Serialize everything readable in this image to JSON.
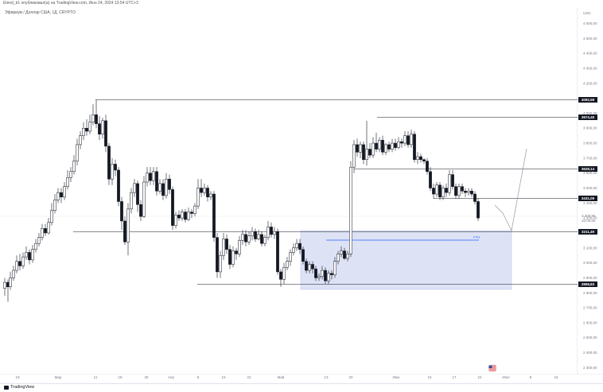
{
  "header": {
    "text": "Elend_b1 опубликовал(а) на TradingView.com, Июн 24, 2024 13:54 UTC+3",
    "symbol": "Эфириум / Доллар США, 1Д, CRYPTO"
  },
  "axis": {
    "currency": "USD",
    "price_labels": [
      "4 600,00",
      "4 500,00",
      "4 400,00",
      "4 300,00",
      "4 200,00",
      "4 100,00",
      "4 000,00",
      "3 900,00",
      "3 800,00",
      "3 700,00",
      "3 600,00",
      "3 500,00",
      "3 400,00",
      "3 300,00",
      "3 100,00",
      "3 000,00",
      "2 900,00",
      "2 800,00",
      "2 700,00",
      "2 600,00",
      "2 500,00",
      "2 400,00",
      "2 300,00"
    ],
    "date_labels": [
      "19",
      "Мар",
      "11",
      "18",
      "25",
      "Апр",
      "8",
      "15",
      "22",
      "Май",
      "13",
      "20",
      "Июн",
      "10",
      "17",
      "24",
      "Июл",
      "8",
      "15"
    ]
  },
  "levels": [
    {
      "label": "4092,59",
      "price": 4092.59
    },
    {
      "label": "3974,40",
      "price": 3974.4
    },
    {
      "label": "3628,14",
      "price": 3628.14
    },
    {
      "label": "3431,09",
      "price": 3431.09
    },
    {
      "label": "3211,49",
      "price": 3211.49
    },
    {
      "label": "2858,83",
      "price": 2858.83
    }
  ],
  "current_price": {
    "label": "3 308,96",
    "countdown": "10:05:06",
    "price": 3308.96
  },
  "fvg_label": "FVG",
  "footer": {
    "brand": "TradingView"
  },
  "colors": {
    "bull": "#ffffff",
    "bear": "#131722",
    "zone": "#dde3f5",
    "fvg": "#2962ff",
    "level": "#131722",
    "projection": "#9598a1"
  }
}
